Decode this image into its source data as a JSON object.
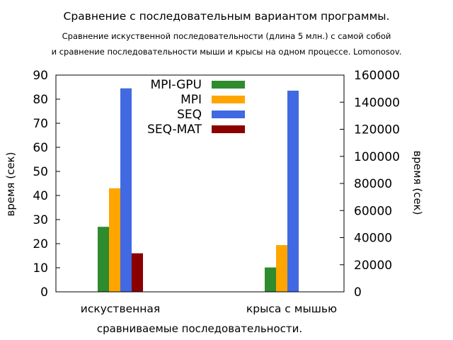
{
  "title": "Сравнение с последовательным вариантом программы.",
  "subtitle_lines": [
    "Сравнение искуственной последовательности (длина 5 млн.) с самой собой",
    "и сравнение последовательности мыши и крысы на одном процессе. Lomonosov."
  ],
  "colors": {
    "MPI-GPU": "#2e8b2e",
    "MPI": "#ffa500",
    "SEQ": "#4169e1",
    "SEQ-MAT": "#8b0000"
  },
  "chart_data": {
    "type": "bar",
    "title": "Сравнение с последовательным вариантом программы.",
    "xlabel": "сравниваемые последовательности.",
    "ylabel": "время (сек)",
    "y2label": "время (сек)",
    "ylim": [
      0,
      90
    ],
    "y2lim": [
      0,
      160000
    ],
    "yticks": [
      0,
      10,
      20,
      30,
      40,
      50,
      60,
      70,
      80,
      90
    ],
    "y2ticks": [
      0,
      20000,
      40000,
      60000,
      80000,
      100000,
      120000,
      140000,
      160000
    ],
    "legend_position": "top-center",
    "categories": [
      "искуственная",
      "крыса с мышью"
    ],
    "category_axis": [
      "left",
      "right"
    ],
    "series": [
      {
        "name": "MPI-GPU",
        "values": [
          27,
          18000
        ]
      },
      {
        "name": "MPI",
        "values": [
          43,
          34500
        ]
      },
      {
        "name": "SEQ",
        "values": [
          84.5,
          148500
        ]
      },
      {
        "name": "SEQ-MAT",
        "values": [
          16,
          null
        ]
      }
    ]
  }
}
